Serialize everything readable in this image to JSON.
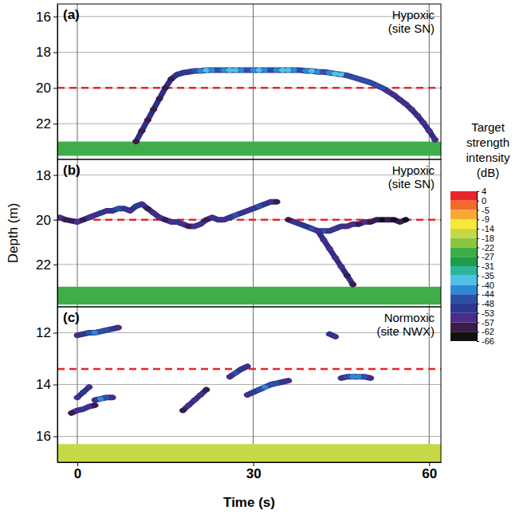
{
  "chart_data": [
    {
      "type": "echogram",
      "label": "(a)",
      "title": "Hypoxic (site SN)",
      "xlim": [
        -3.4,
        62
      ],
      "xticks": [
        0,
        30,
        60
      ],
      "ylim": [
        15.3,
        24.0
      ],
      "yticks": [
        16,
        18,
        20,
        22
      ],
      "grid": true,
      "tick_labels": "y",
      "threshold_depth": 20,
      "seabed": {
        "top": 23.0,
        "bottom": 23.8,
        "ts": -25
      },
      "series": [
        {
          "x": [
            10,
            11,
            12,
            13,
            14,
            15,
            16,
            17,
            18,
            19,
            20,
            21,
            22,
            23,
            24,
            25,
            26,
            27,
            28,
            29,
            30,
            31,
            32,
            33,
            34,
            35,
            36,
            37,
            38,
            39,
            40,
            41,
            42,
            43,
            44,
            45,
            46,
            47,
            48,
            49,
            50,
            51,
            52,
            53,
            54,
            55,
            56,
            57,
            58,
            59,
            60,
            61
          ],
          "values": [
            23.0,
            22.4,
            21.8,
            21.2,
            20.6,
            20.0,
            19.5,
            19.25,
            19.15,
            19.1,
            19.05,
            19.05,
            19.0,
            19.0,
            19.0,
            19.0,
            19.0,
            19.0,
            19.0,
            19.0,
            19.0,
            19.0,
            19.0,
            19.0,
            19.0,
            19.0,
            19.0,
            19.0,
            19.0,
            19.05,
            19.05,
            19.1,
            19.1,
            19.15,
            19.2,
            19.25,
            19.3,
            19.4,
            19.5,
            19.6,
            19.7,
            19.85,
            20.0,
            20.2,
            20.4,
            20.65,
            20.9,
            21.2,
            21.55,
            21.95,
            22.4,
            22.9
          ],
          "ts": [
            -57,
            -57,
            -57,
            -57,
            -57,
            -57,
            -57,
            -50,
            -50,
            -50,
            -46,
            -42,
            -38,
            -42,
            -46,
            -42,
            -38,
            -36,
            -42,
            -46,
            -42,
            -38,
            -42,
            -46,
            -42,
            -38,
            -36,
            -42,
            -46,
            -42,
            -38,
            -42,
            -46,
            -42,
            -38,
            -36,
            -46,
            -46,
            -46,
            -46,
            -46,
            -46,
            -46,
            -53,
            -53,
            -53,
            -53,
            -53,
            -53,
            -53,
            -53,
            -53
          ]
        }
      ]
    },
    {
      "type": "echogram",
      "label": "(b)",
      "title": "Hypoxic (site SN)",
      "xlim": [
        -3.4,
        62
      ],
      "xticks": [
        0,
        30,
        60
      ],
      "ylim": [
        17.3,
        23.9
      ],
      "yticks": [
        18,
        20,
        22
      ],
      "grid": true,
      "tick_labels": "y",
      "threshold_depth": 20,
      "seabed": {
        "top": 23.0,
        "bottom": 23.8,
        "ts": -25
      },
      "series": [
        {
          "x": [
            -3,
            -2,
            -1,
            0,
            1,
            2,
            3,
            4,
            5,
            6,
            7,
            8,
            9,
            10,
            11,
            12,
            13,
            14,
            15,
            16,
            17,
            18,
            19,
            20,
            21,
            22,
            23,
            24,
            25,
            26,
            27,
            28,
            29,
            30,
            31,
            32,
            33,
            34
          ],
          "values": [
            19.9,
            20.0,
            20.05,
            20.1,
            20.0,
            19.9,
            19.8,
            19.7,
            19.6,
            19.6,
            19.5,
            19.5,
            19.6,
            19.4,
            19.3,
            19.5,
            19.7,
            19.9,
            20.0,
            20.1,
            20.1,
            20.2,
            20.3,
            20.3,
            20.2,
            20.0,
            19.9,
            20.0,
            20.0,
            19.9,
            19.8,
            19.7,
            19.6,
            19.5,
            19.4,
            19.3,
            19.2,
            19.2
          ],
          "ts": [
            -53,
            -57,
            -57,
            -53,
            -57,
            -53,
            -53,
            -48,
            -53,
            -48,
            -44,
            -48,
            -53,
            -48,
            -53,
            -57,
            -53,
            -53,
            -57,
            -53,
            -48,
            -53,
            -57,
            -53,
            -53,
            -57,
            -53,
            -48,
            -53,
            -48,
            -44,
            -48,
            -53,
            -48,
            -44,
            -48,
            -53,
            -57
          ]
        },
        {
          "x": [
            36,
            37,
            38,
            39,
            40,
            41,
            42,
            43,
            44,
            45,
            46,
            47,
            48,
            49,
            50,
            51,
            52,
            53,
            54,
            55,
            56
          ],
          "values": [
            20.0,
            20.1,
            20.2,
            20.3,
            20.4,
            20.5,
            20.5,
            20.5,
            20.4,
            20.3,
            20.3,
            20.2,
            20.2,
            20.1,
            20.1,
            20.0,
            20.0,
            20.0,
            20.0,
            20.1,
            20.0
          ],
          "ts": [
            -57,
            -53,
            -48,
            -48,
            -44,
            -48,
            -44,
            -48,
            -53,
            -48,
            -53,
            -53,
            -57,
            -53,
            -57,
            -57,
            -62,
            -57,
            -62,
            -57,
            -62
          ]
        },
        {
          "x": [
            41,
            42,
            43,
            44,
            45,
            46,
            47
          ],
          "values": [
            20.5,
            20.9,
            21.3,
            21.7,
            22.1,
            22.5,
            22.9
          ],
          "ts": [
            -53,
            -53,
            -53,
            -53,
            -53,
            -57,
            -57
          ]
        }
      ]
    },
    {
      "type": "echogram",
      "label": "(c)",
      "title": "Normoxic (site NWX)",
      "xlim": [
        -3.4,
        62
      ],
      "xticks": [
        0,
        30,
        60
      ],
      "ylim": [
        11.0,
        17.0
      ],
      "yticks": [
        12,
        14,
        16
      ],
      "grid": true,
      "threshold_depth": 13.4,
      "seabed": {
        "top": 16.3,
        "bottom": 17.0,
        "ts": -14
      },
      "series": [
        {
          "x": [
            0,
            1,
            2,
            3,
            4,
            5,
            6,
            7
          ],
          "values": [
            12.1,
            12.05,
            12.0,
            12.0,
            11.95,
            11.9,
            11.85,
            11.8
          ],
          "ts": [
            -53,
            -48,
            -44,
            -40,
            -44,
            -44,
            -48,
            -53
          ]
        },
        {
          "x": [
            43,
            44
          ],
          "values": [
            12.05,
            12.15
          ],
          "ts": [
            -48,
            -53
          ]
        },
        {
          "x": [
            0,
            1,
            2
          ],
          "values": [
            14.5,
            14.3,
            14.1
          ],
          "ts": [
            -53,
            -48,
            -53
          ]
        },
        {
          "x": [
            3,
            4,
            5,
            6
          ],
          "values": [
            14.6,
            14.55,
            14.5,
            14.5
          ],
          "ts": [
            -53,
            -40,
            -44,
            -53
          ]
        },
        {
          "x": [
            -1,
            0,
            1,
            2,
            3
          ],
          "values": [
            15.1,
            15.0,
            14.95,
            14.85,
            14.8
          ],
          "ts": [
            -57,
            -53,
            -48,
            -53,
            -57
          ]
        },
        {
          "x": [
            18,
            19,
            20,
            21,
            22
          ],
          "values": [
            15.0,
            14.8,
            14.6,
            14.4,
            14.2
          ],
          "ts": [
            -57,
            -53,
            -53,
            -53,
            -57
          ]
        },
        {
          "x": [
            26,
            27,
            28,
            29
          ],
          "values": [
            13.7,
            13.55,
            13.4,
            13.3
          ],
          "ts": [
            -53,
            -44,
            -48,
            -53
          ]
        },
        {
          "x": [
            29,
            30,
            31,
            32,
            33,
            34,
            35,
            36
          ],
          "values": [
            14.4,
            14.3,
            14.2,
            14.1,
            14.0,
            13.95,
            13.9,
            13.85
          ],
          "ts": [
            -53,
            -48,
            -44,
            -40,
            -44,
            -44,
            -48,
            -53
          ]
        },
        {
          "x": [
            45,
            46,
            47,
            48,
            49,
            50
          ],
          "values": [
            13.75,
            13.7,
            13.7,
            13.7,
            13.7,
            13.75
          ],
          "ts": [
            -53,
            -44,
            -40,
            -40,
            -44,
            -53
          ]
        }
      ]
    }
  ],
  "xlabel": "Time (s)",
  "ylabel": "Depth (m)",
  "color_bar": {
    "title": "Target strength intensity (dB)",
    "ticks": [
      4,
      0,
      -5,
      -9,
      -14,
      -18,
      -22,
      -27,
      -31,
      -35,
      -40,
      -44,
      -48,
      -53,
      -57,
      -62,
      -66
    ],
    "colors": [
      "#e8262a",
      "#f26b2b",
      "#f9a833",
      "#f5e93a",
      "#c6d845",
      "#8cc63f",
      "#3fae49",
      "#1e9b4c",
      "#2bb59b",
      "#4cc3e6",
      "#2b8ad6",
      "#2d4fa8",
      "#2b3a8f",
      "#4a2c8a",
      "#3a1b4a",
      "#111111"
    ]
  }
}
